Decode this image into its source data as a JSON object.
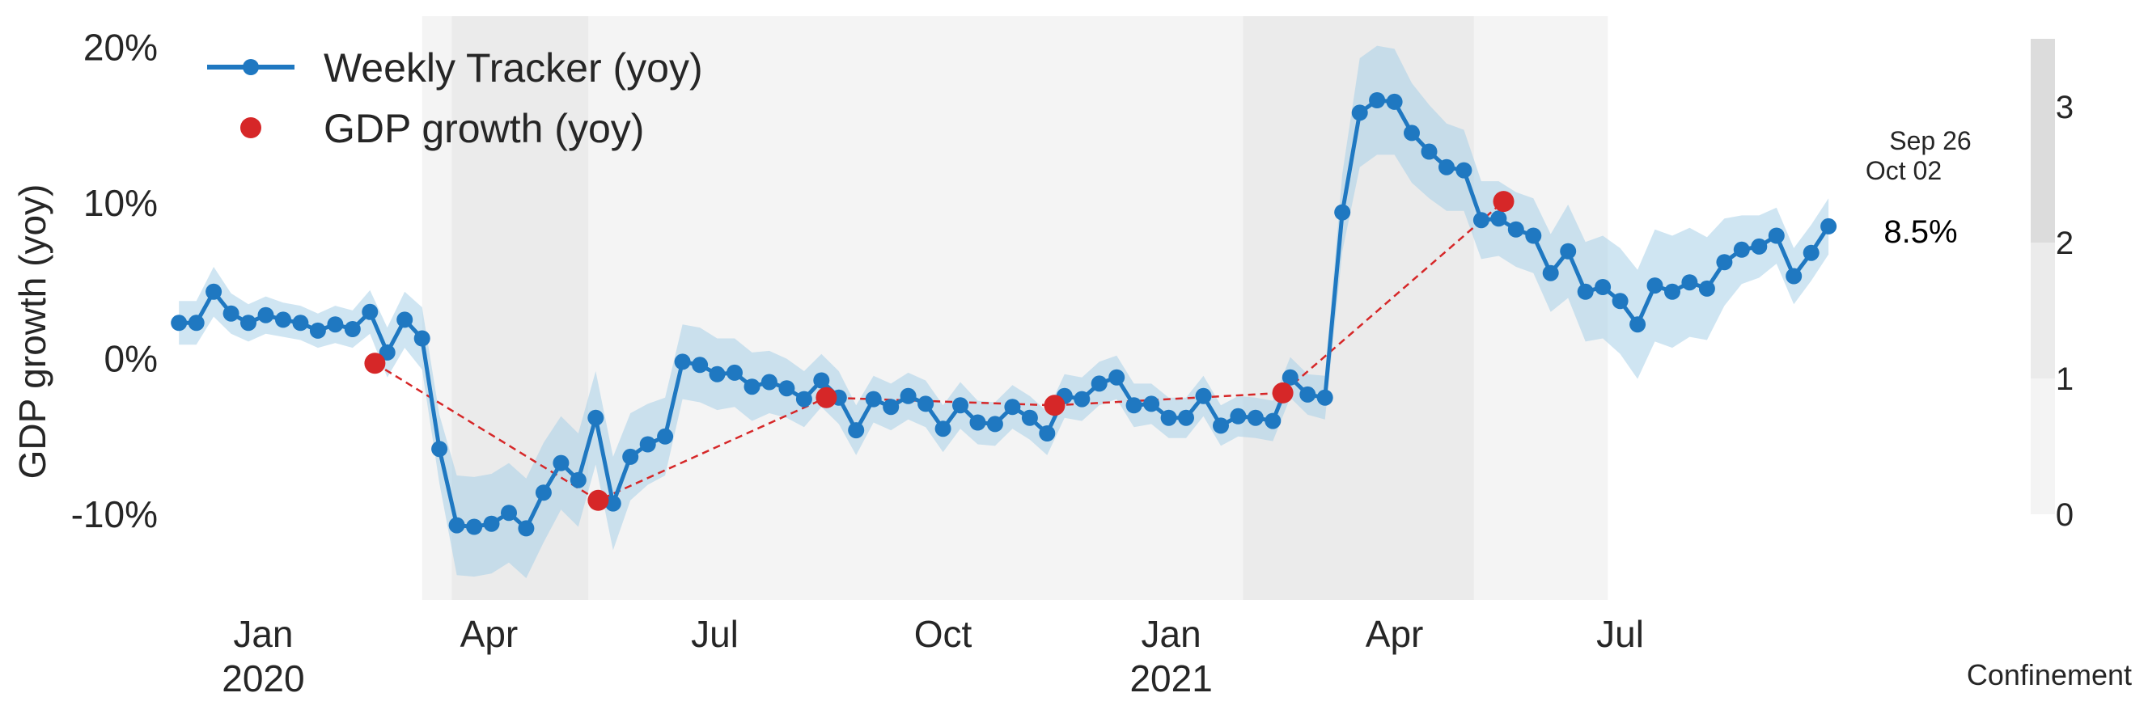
{
  "chart_data": {
    "type": "line",
    "ylabel": "GDP growth (yoy)",
    "ylim": [
      -15.5,
      22
    ],
    "y_ticks": [
      {
        "value": 20,
        "label": "20%"
      },
      {
        "value": 10,
        "label": "10%"
      },
      {
        "value": 0,
        "label": "0%"
      },
      {
        "value": -10,
        "label": "-10%"
      }
    ],
    "x_range": [
      "2019-11-25",
      "2021-10-06"
    ],
    "x_ticks": [
      {
        "date": "2020-01-01",
        "label": "Jan",
        "sublabel": "2020"
      },
      {
        "date": "2020-04-01",
        "label": "Apr",
        "sublabel": ""
      },
      {
        "date": "2020-07-01",
        "label": "Jul",
        "sublabel": ""
      },
      {
        "date": "2020-10-01",
        "label": "Oct",
        "sublabel": ""
      },
      {
        "date": "2021-01-01",
        "label": "Jan",
        "sublabel": "2021"
      },
      {
        "date": "2021-04-01",
        "label": "Apr",
        "sublabel": ""
      },
      {
        "date": "2021-07-01",
        "label": "Jul",
        "sublabel": ""
      }
    ],
    "grid": false,
    "legend": {
      "placement": "top-left",
      "entries": [
        {
          "label": "Weekly Tracker (yoy)",
          "color": "#1f78c1",
          "marker": "line-dot"
        },
        {
          "label": "GDP growth (yoy)",
          "color": "#d62728",
          "marker": "dot"
        }
      ]
    },
    "confinement": {
      "label": "Confinement",
      "colorbar_ticks": [
        {
          "value": 3,
          "label": "3"
        },
        {
          "value": 2,
          "label": "2"
        },
        {
          "value": 1,
          "label": "1"
        },
        {
          "value": 0,
          "label": "0"
        }
      ],
      "colorbar_colors": [
        "#dcdcdc",
        "#ebebeb",
        "#f4f4f4"
      ],
      "periods": [
        {
          "start": "2020-03-05",
          "end": "2021-06-26",
          "level": 1
        },
        {
          "start": "2020-03-17",
          "end": "2020-05-11",
          "level": 2
        },
        {
          "start": "2021-01-30",
          "end": "2021-05-03",
          "level": 2
        }
      ]
    },
    "weekly_color": "#1f78c1",
    "band_color": "#a8cfe8",
    "gdp_color": "#d62728",
    "weekly_series": {
      "name": "Weekly Tracker (yoy)",
      "x_start": "2019-11-28",
      "step_days": 7,
      "values": [
        2.3,
        2.3,
        4.3,
        2.9,
        2.3,
        2.8,
        2.5,
        2.3,
        1.8,
        2.2,
        1.9,
        3.0,
        0.4,
        2.5,
        1.3,
        -5.8,
        -10.7,
        -10.8,
        -10.6,
        -9.9,
        -10.9,
        -8.6,
        -6.7,
        -7.8,
        -3.8,
        -9.3,
        -6.3,
        -5.5,
        -5.0,
        -0.2,
        -0.4,
        -1.0,
        -0.9,
        -1.8,
        -1.5,
        -1.9,
        -2.6,
        -1.4,
        -2.5,
        -4.6,
        -2.6,
        -3.1,
        -2.4,
        -2.9,
        -4.5,
        -3.0,
        -4.1,
        -4.2,
        -3.1,
        -3.8,
        -4.8,
        -2.4,
        -2.6,
        -1.6,
        -1.2,
        -3.0,
        -2.9,
        -3.8,
        -3.8,
        -2.4,
        -4.3,
        -3.7,
        -3.8,
        -4.0,
        -1.2,
        -2.3,
        -2.5,
        9.4,
        15.8,
        16.6,
        16.5,
        14.5,
        13.3,
        12.3,
        12.1,
        8.9,
        9.0,
        8.3,
        7.9,
        5.5,
        6.9,
        4.3,
        4.6,
        3.7,
        2.2,
        4.7,
        4.3,
        4.9,
        4.5,
        6.2,
        7.0,
        7.2,
        7.9,
        5.3,
        6.8,
        8.5
      ],
      "band_half_width": [
        1.4,
        1.4,
        1.6,
        1.3,
        1.2,
        1.2,
        1.1,
        1.1,
        1.1,
        1.2,
        1.2,
        1.4,
        1.6,
        1.8,
        2.0,
        2.2,
        3.2,
        3.2,
        3.2,
        3.2,
        3.2,
        3.2,
        3.0,
        3.0,
        3.0,
        3.0,
        2.8,
        2.6,
        2.5,
        2.4,
        2.4,
        2.3,
        2.2,
        2.2,
        2.0,
        1.9,
        1.8,
        1.7,
        1.7,
        1.6,
        1.5,
        1.5,
        1.5,
        1.5,
        1.5,
        1.5,
        1.4,
        1.4,
        1.4,
        1.4,
        1.4,
        1.4,
        1.4,
        1.4,
        1.4,
        1.4,
        1.3,
        1.3,
        1.3,
        1.3,
        1.3,
        1.3,
        1.3,
        1.3,
        1.3,
        1.3,
        1.4,
        2.5,
        3.5,
        3.5,
        3.4,
        3.2,
        3.0,
        2.8,
        2.6,
        2.5,
        2.4,
        2.4,
        2.4,
        2.5,
        3.0,
        3.2,
        3.3,
        3.4,
        3.5,
        3.6,
        3.6,
        3.5,
        3.3,
        2.8,
        2.2,
        2.0,
        1.8,
        1.8,
        1.8,
        1.8
      ]
    },
    "gdp_series": {
      "name": "GDP growth (yoy)",
      "points": [
        {
          "date": "2020-02-15",
          "value": -0.3
        },
        {
          "date": "2020-05-15",
          "value": -9.1
        },
        {
          "date": "2020-08-15",
          "value": -2.5
        },
        {
          "date": "2020-11-15",
          "value": -3.0
        },
        {
          "date": "2021-02-15",
          "value": -2.2
        },
        {
          "date": "2021-05-15",
          "value": 10.1
        }
      ]
    },
    "annotation": {
      "date_line_1": "Sep 26",
      "date_line_2": "Oct 02",
      "value_label": "8.5%"
    }
  }
}
